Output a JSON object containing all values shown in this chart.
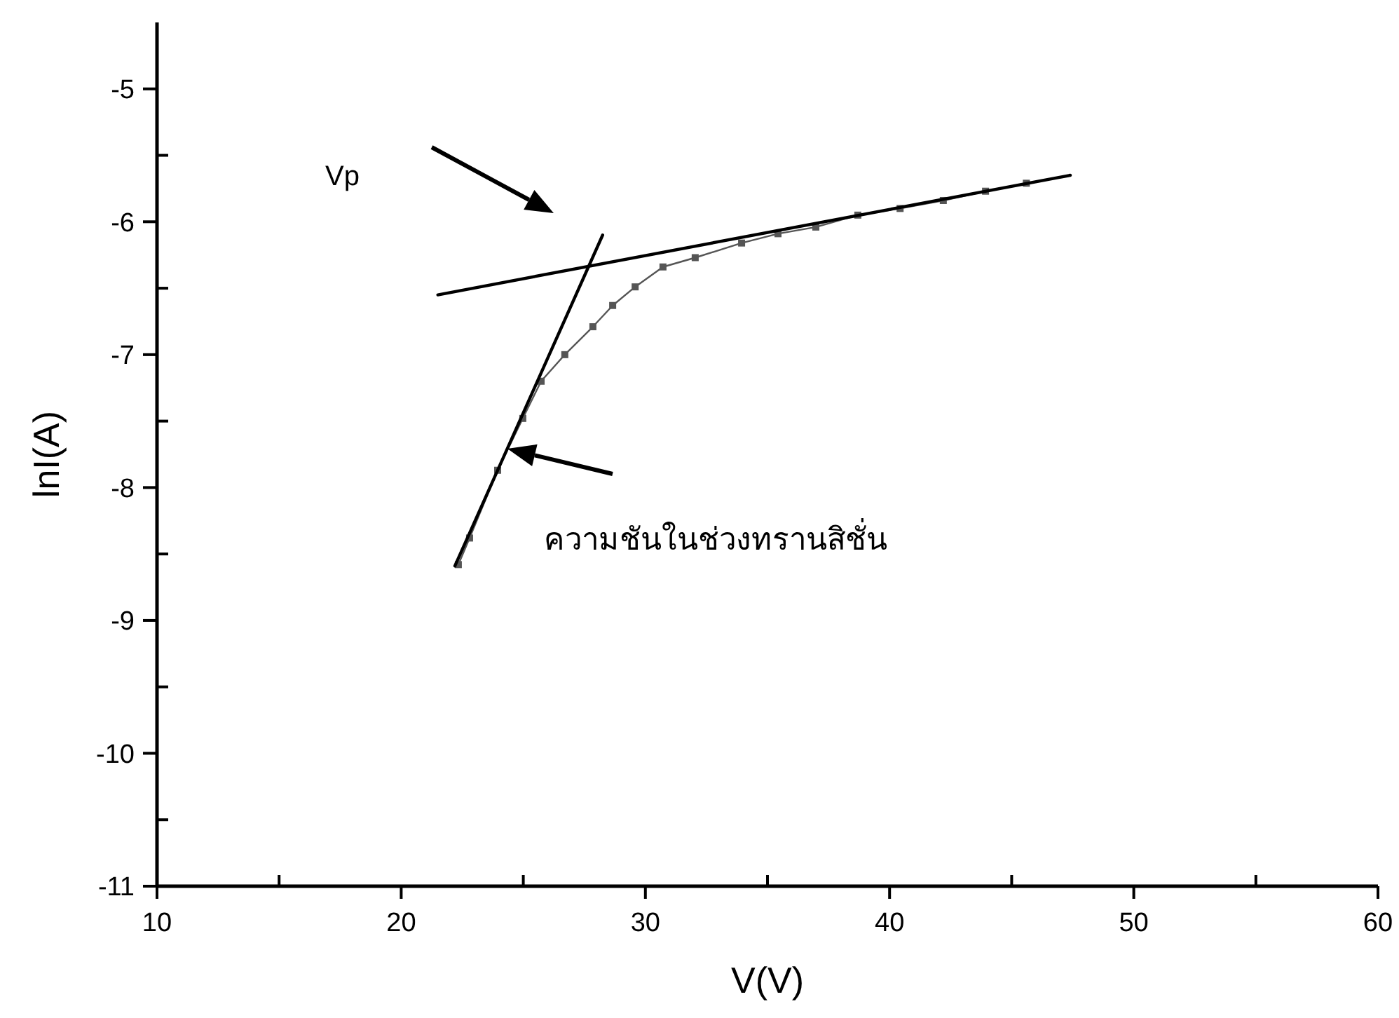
{
  "chart_data": {
    "type": "line",
    "xlabel": "V(V)",
    "ylabel": "lnI(A)",
    "xlim": [
      10,
      60
    ],
    "ylim": [
      -11,
      -4.5
    ],
    "xticks": [
      10,
      {
        "value": 15,
        "label": null
      },
      20,
      {
        "value": 25,
        "label": null
      },
      30,
      {
        "value": 35,
        "label": null
      },
      40,
      {
        "value": 45,
        "label": null
      },
      50,
      {
        "value": 55,
        "label": null
      },
      60
    ],
    "yticks": [
      -11,
      {
        "value": -10.5,
        "label": null
      },
      -10,
      {
        "value": -9.5,
        "label": null
      },
      -9,
      {
        "value": -8.5,
        "label": null
      },
      -8,
      {
        "value": -7.5,
        "label": null
      },
      -7,
      {
        "value": -6.5,
        "label": null
      },
      -6,
      {
        "value": -5.5,
        "label": null
      },
      -5
    ],
    "grid": false,
    "series": [
      {
        "color": "#555555",
        "marker": "square",
        "x": [
          22.34,
          22.8,
          23.95,
          24.98,
          25.73,
          26.7,
          27.85,
          28.66,
          29.58,
          30.72,
          32.04,
          33.94,
          35.43,
          36.98,
          38.7,
          40.43,
          42.2,
          43.93,
          45.6
        ],
        "values": [
          -8.58,
          -8.38,
          -7.87,
          -7.48,
          -7.2,
          -7.0,
          -6.79,
          -6.63,
          -6.49,
          -6.34,
          -6.27,
          -6.16,
          -6.09,
          -6.04,
          -5.95,
          -5.9,
          -5.84,
          -5.77,
          -5.71
        ]
      },
      {
        "color": "#000000",
        "marker": "none",
        "x": [
          22.2,
          28.25
        ],
        "values": [
          -8.59,
          -6.1
        ]
      },
      {
        "color": "#000000",
        "marker": "none",
        "x": [
          21.5,
          47.4
        ],
        "values": [
          -6.55,
          -5.65
        ]
      }
    ],
    "annotations": [
      "Vp",
      "ความชันในช่วงทรานสิชั่น"
    ]
  }
}
